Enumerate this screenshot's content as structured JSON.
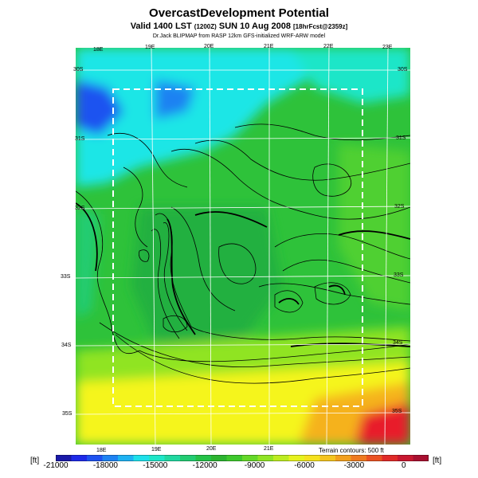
{
  "header": {
    "title": "OvercastDevelopment Potential",
    "subtitle_main": "Valid 1400 LST",
    "subtitle_utc": "(1200Z)",
    "subtitle_date": "SUN 10 Aug 2008",
    "subtitle_fcst": "[18hrFcst@2359z]",
    "credit": "Dr.Jack BLIPMAP from RASP 12km GFS-initialized WRF-ARW model"
  },
  "map": {
    "lon_labels_top": [
      "18E",
      "19E",
      "20E",
      "21E",
      "22E",
      "23E"
    ],
    "lon_labels_bottom": [
      "18E",
      "19E",
      "20E",
      "21E"
    ],
    "lat_labels_left": [
      "30S",
      "31S",
      "32S",
      "33S",
      "34S",
      "35S"
    ],
    "lat_labels_right": [
      "30S",
      "31S",
      "32S",
      "33S",
      "34S",
      "35S"
    ],
    "terrain_note": "Terrain contours: 500 ft",
    "colors": {
      "ocean_blue": "#2a6ef0",
      "cyan": "#1ee6e6",
      "green": "#2ec23a",
      "yellow": "#f5f51a",
      "orange": "#f5b21e",
      "red": "#e81e2a"
    }
  },
  "colorbar": {
    "unit_left": "[ft]",
    "unit_right": "[ft]",
    "ticks": [
      "-21000",
      "-18000",
      "-15000",
      "-12000",
      "-9000",
      "-6000",
      "-3000",
      "0"
    ],
    "min": -21000,
    "max": 1500,
    "colors": [
      "#1a1aa8",
      "#1e2ae8",
      "#1e52f0",
      "#1e82f2",
      "#1eb2f2",
      "#1ee0ea",
      "#1ee6c8",
      "#20d8a0",
      "#22cc72",
      "#24c248",
      "#2cb430",
      "#3ec82c",
      "#64d828",
      "#90e424",
      "#bcec20",
      "#e6f21e",
      "#f5e21e",
      "#f5c41e",
      "#f2a01e",
      "#ee7a20",
      "#ea5222",
      "#e02a28",
      "#c81830",
      "#a81030"
    ]
  }
}
